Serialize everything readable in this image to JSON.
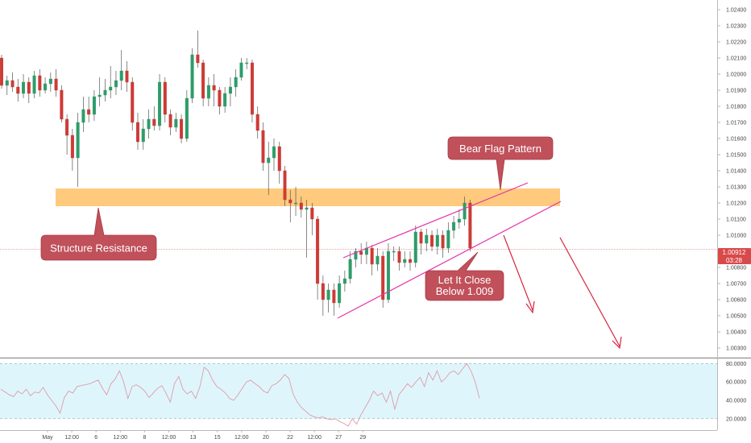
{
  "chart_data": {
    "type": "candlestick",
    "price_axis": {
      "ylim": [
        1.0025,
        1.0245
      ],
      "ticks": [
        "1.02400",
        "1.02300",
        "1.02200",
        "1.02100",
        "1.02000",
        "1.01900",
        "1.01800",
        "1.01700",
        "1.01600",
        "1.01500",
        "1.01400",
        "1.01300",
        "1.01200",
        "1.01100",
        "1.01000",
        "1.00900",
        "1.00800",
        "1.00700",
        "1.00600",
        "1.00500",
        "1.00400",
        "1.00300"
      ],
      "tick_values": [
        1.024,
        1.023,
        1.022,
        1.021,
        1.02,
        1.019,
        1.018,
        1.017,
        1.016,
        1.015,
        1.014,
        1.013,
        1.012,
        1.011,
        1.01,
        1.009,
        1.008,
        1.007,
        1.006,
        1.005,
        1.004,
        1.003
      ]
    },
    "current_price": {
      "label": "1.00912",
      "value": 1.00912,
      "countdown": "03:28"
    },
    "time_axis": {
      "labels": [
        "May",
        "12:00",
        "6",
        "12:00",
        "8",
        "12:00",
        "13",
        "15",
        "12:00",
        "20",
        "22",
        "12:00",
        "27",
        "29"
      ],
      "positions": [
        0,
        4,
        8,
        12,
        16,
        20,
        24,
        28,
        32,
        36,
        40,
        44,
        48,
        52
      ]
    },
    "candles": [
      [
        0,
        1.021,
        1.0193,
        1.0212,
        1.0191
      ],
      [
        1,
        1.0193,
        1.0196,
        1.0199,
        1.0187
      ],
      [
        2,
        1.0196,
        1.0192,
        1.0201,
        1.0189
      ],
      [
        3,
        1.0192,
        1.0188,
        1.0197,
        1.0183
      ],
      [
        4,
        1.0188,
        1.0195,
        1.02,
        1.0185
      ],
      [
        5,
        1.0195,
        1.0188,
        1.0198,
        1.0182
      ],
      [
        6,
        1.0188,
        1.0199,
        1.0202,
        1.0185
      ],
      [
        7,
        1.0199,
        1.019,
        1.0203,
        1.0186
      ],
      [
        8,
        1.019,
        1.0194,
        1.0198,
        1.0188
      ],
      [
        9,
        1.0194,
        1.0197,
        1.0201,
        1.0189
      ],
      [
        10,
        1.0197,
        1.019,
        1.0203,
        1.0186
      ],
      [
        11,
        1.019,
        1.0172,
        1.0193,
        1.017
      ],
      [
        12,
        1.0172,
        1.0162,
        1.0175,
        1.015
      ],
      [
        13,
        1.0162,
        1.0148,
        1.0166,
        1.014
      ],
      [
        14,
        1.0148,
        1.017,
        1.0176,
        1.013
      ],
      [
        15,
        1.017,
        1.0178,
        1.0186,
        1.0164
      ],
      [
        16,
        1.0178,
        1.0175,
        1.0186,
        1.017
      ],
      [
        17,
        1.0175,
        1.0186,
        1.019,
        1.0171
      ],
      [
        18,
        1.0186,
        1.0187,
        1.0198,
        1.018
      ],
      [
        19,
        1.0187,
        1.019,
        1.0197,
        1.0183
      ],
      [
        20,
        1.019,
        1.0192,
        1.0205,
        1.0185
      ],
      [
        21,
        1.0192,
        1.0196,
        1.0202,
        1.0187
      ],
      [
        22,
        1.0196,
        1.0202,
        1.0215,
        1.019
      ],
      [
        23,
        1.0202,
        1.0195,
        1.0208,
        1.0189
      ],
      [
        24,
        1.0195,
        1.017,
        1.0198,
        1.0165
      ],
      [
        25,
        1.017,
        1.0158,
        1.0176,
        1.0153
      ],
      [
        26,
        1.0158,
        1.0166,
        1.0172,
        1.0153
      ],
      [
        27,
        1.0166,
        1.0172,
        1.0178,
        1.016
      ],
      [
        28,
        1.0172,
        1.0168,
        1.018,
        1.0165
      ],
      [
        29,
        1.0168,
        1.0195,
        1.02,
        1.0165
      ],
      [
        30,
        1.0195,
        1.0175,
        1.0198,
        1.017
      ],
      [
        31,
        1.0175,
        1.0167,
        1.0178,
        1.0162
      ],
      [
        32,
        1.0167,
        1.0172,
        1.0176,
        1.0164
      ],
      [
        33,
        1.0172,
        1.016,
        1.0175,
        1.0157
      ],
      [
        34,
        1.016,
        1.0185,
        1.019,
        1.0158
      ],
      [
        35,
        1.0185,
        1.0212,
        1.0216,
        1.0182
      ],
      [
        36,
        1.0212,
        1.0207,
        1.0227,
        1.0204
      ],
      [
        37,
        1.0207,
        1.0185,
        1.0209,
        1.018
      ],
      [
        38,
        1.0185,
        1.0193,
        1.0198,
        1.018
      ],
      [
        39,
        1.0193,
        1.019,
        1.02,
        1.018
      ],
      [
        40,
        1.019,
        1.018,
        1.0192,
        1.0175
      ],
      [
        41,
        1.018,
        1.0188,
        1.0192,
        1.0176
      ],
      [
        42,
        1.0188,
        1.0192,
        1.0198,
        1.018
      ],
      [
        43,
        1.0192,
        1.0198,
        1.0203,
        1.0186
      ],
      [
        44,
        1.0198,
        1.0207,
        1.021,
        1.0196
      ],
      [
        45,
        1.0207,
        1.0207,
        1.021,
        1.0203
      ],
      [
        46,
        1.0207,
        1.0175,
        1.0209,
        1.017
      ],
      [
        47,
        1.0175,
        1.0165,
        1.018,
        1.016
      ],
      [
        48,
        1.0165,
        1.0145,
        1.017,
        1.014
      ],
      [
        49,
        1.0145,
        1.0148,
        1.0158,
        1.0125
      ],
      [
        50,
        1.0148,
        1.0155,
        1.016,
        1.014
      ],
      [
        51,
        1.0155,
        1.014,
        1.0158,
        1.0132
      ],
      [
        52,
        1.014,
        1.0122,
        1.0143,
        1.0118
      ],
      [
        53,
        1.0122,
        1.012,
        1.0128,
        1.0108
      ],
      [
        54,
        1.012,
        1.012,
        1.013,
        1.0112
      ],
      [
        55,
        1.012,
        1.0116,
        1.0124,
        1.0111
      ],
      [
        56,
        1.0116,
        1.0117,
        1.0122,
        1.0086
      ],
      [
        57,
        1.0117,
        1.011,
        1.012,
        1.01
      ],
      [
        58,
        1.011,
        1.007,
        1.0112,
        1.006
      ],
      [
        59,
        1.007,
        1.006,
        1.0075,
        1.005
      ],
      [
        60,
        1.006,
        1.0066,
        1.007,
        1.0052
      ],
      [
        61,
        1.0066,
        1.0058,
        1.007,
        1.005
      ],
      [
        62,
        1.0058,
        1.007,
        1.0075,
        1.0055
      ],
      [
        63,
        1.007,
        1.0073,
        1.0078,
        1.0065
      ],
      [
        64,
        1.0073,
        1.0085,
        1.009,
        1.007
      ],
      [
        65,
        1.0085,
        1.009,
        1.0092,
        1.008
      ],
      [
        66,
        1.009,
        1.0088,
        1.0095,
        1.0082
      ],
      [
        67,
        1.0088,
        1.0092,
        1.0096,
        1.0082
      ],
      [
        68,
        1.0092,
        1.0082,
        1.0094,
        1.0075
      ],
      [
        69,
        1.0082,
        1.0087,
        1.0092,
        1.0078
      ],
      [
        70,
        1.0087,
        1.006,
        1.009,
        1.0055
      ],
      [
        71,
        1.006,
        1.009,
        1.0095,
        1.0058
      ],
      [
        72,
        1.009,
        1.009,
        1.0093,
        1.0084
      ],
      [
        73,
        1.009,
        1.0083,
        1.0093,
        1.0078
      ],
      [
        74,
        1.0083,
        1.0085,
        1.009,
        1.008
      ],
      [
        75,
        1.0085,
        1.0083,
        1.009,
        1.0078
      ],
      [
        76,
        1.0083,
        1.0102,
        1.0106,
        1.008
      ],
      [
        77,
        1.0102,
        1.0095,
        1.0104,
        1.0088
      ],
      [
        78,
        1.0095,
        1.01,
        1.0104,
        1.009
      ],
      [
        79,
        1.01,
        1.0093,
        1.0103,
        1.009
      ],
      [
        80,
        1.0093,
        1.01,
        1.0104,
        1.0088
      ],
      [
        81,
        1.01,
        1.0092,
        1.0103,
        1.0086
      ],
      [
        82,
        1.0092,
        1.0103,
        1.0108,
        1.0089
      ],
      [
        83,
        1.0103,
        1.0108,
        1.0112,
        1.0098
      ],
      [
        84,
        1.0108,
        1.011,
        1.0116,
        1.0104
      ],
      [
        85,
        1.011,
        1.012,
        1.0124,
        1.0106
      ],
      [
        86,
        1.012,
        1.0092,
        1.0122,
        1.009
      ]
    ],
    "rsi": {
      "ticks": [
        "80.0000",
        "60.0000",
        "40.0000",
        "20.0000"
      ],
      "tick_values": [
        80,
        60,
        40,
        20
      ],
      "band": [
        20,
        80
      ],
      "ylim": [
        12,
        82
      ],
      "values": [
        52,
        49,
        46,
        44,
        50,
        47,
        52,
        45,
        49,
        48,
        54,
        46,
        40,
        34,
        26,
        43,
        50,
        48,
        55,
        56,
        57,
        58,
        60,
        62,
        53,
        46,
        58,
        63,
        72,
        60,
        42,
        55,
        57,
        54,
        50,
        43,
        48,
        53,
        56,
        48,
        38,
        58,
        66,
        52,
        47,
        50,
        42,
        55,
        76,
        72,
        62,
        55,
        52,
        48,
        42,
        40,
        46,
        53,
        60,
        62,
        58,
        55,
        50,
        48,
        56,
        58,
        62,
        68,
        64,
        47,
        38,
        32,
        28,
        24,
        22,
        21,
        22,
        20,
        19,
        20,
        17,
        15,
        12,
        20,
        14,
        24,
        32,
        40,
        50,
        45,
        48,
        38,
        50,
        30,
        46,
        52,
        58,
        54,
        60,
        65,
        55,
        70,
        62,
        72,
        60,
        64,
        70,
        72,
        68,
        74,
        80,
        72,
        60,
        42
      ]
    },
    "annotations": {
      "resistance_label": "Structure Resistance",
      "pattern_label": "Bear Flag Pattern",
      "target_label_line1": "Let It Close",
      "target_label_line2": "Below 1.009"
    },
    "colors": {
      "bull": "#2e9c6a",
      "bear": "#cc3b36",
      "zone": "#ffa726",
      "channel": "#e535ab",
      "arrow": "#d7263d",
      "callout": "#c0505a",
      "rsi_line": "#e09aa8",
      "rsi_band": "#def6fb",
      "price_tag": "#d84a4a"
    }
  }
}
